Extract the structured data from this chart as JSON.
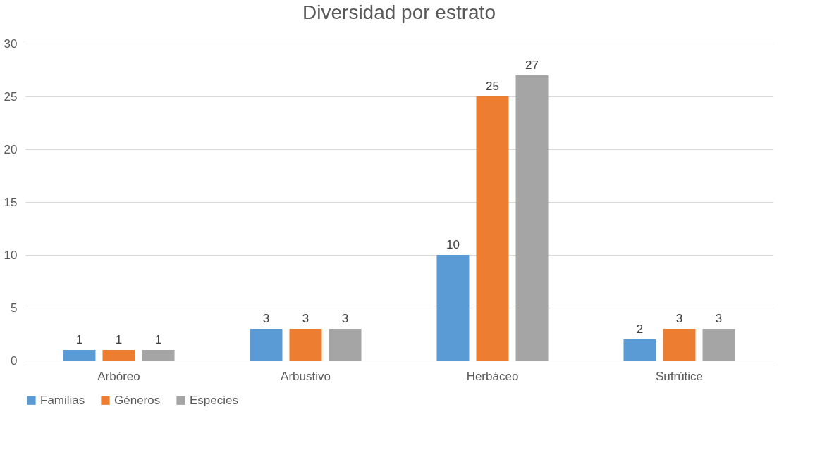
{
  "chart_data": {
    "type": "bar",
    "title": "Diversidad por estrato",
    "categories": [
      "Arbóreo",
      "Arbustivo",
      "Herbáceo",
      "Sufrútice"
    ],
    "series": [
      {
        "name": "Familias",
        "color": "#5b9bd5",
        "values": [
          1,
          3,
          10,
          2
        ]
      },
      {
        "name": "Géneros",
        "color": "#ed7d31",
        "values": [
          1,
          3,
          25,
          3
        ]
      },
      {
        "name": "Especies",
        "color": "#a5a5a5",
        "values": [
          1,
          3,
          27,
          3
        ]
      }
    ],
    "ylim": [
      0,
      30
    ],
    "yticks": [
      0,
      5,
      10,
      15,
      20,
      25,
      30
    ],
    "grid": "y",
    "legend": "bottom",
    "data_labels": true
  }
}
